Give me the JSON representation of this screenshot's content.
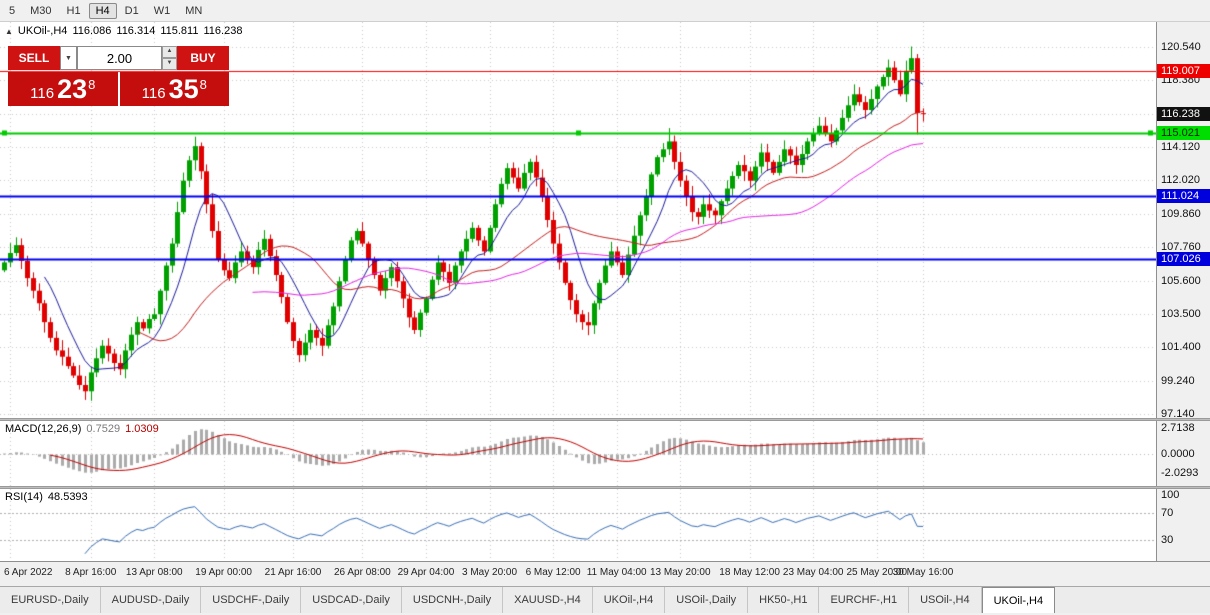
{
  "toolbar": {
    "timeframes": [
      "5",
      "M30",
      "H1",
      "H4",
      "D1",
      "W1",
      "MN"
    ],
    "active": "H4"
  },
  "header": {
    "collapse_icon": "▲",
    "symbol": "UKOil-,H4",
    "open": "116.086",
    "high": "116.314",
    "low": "115.811",
    "close": "116.238"
  },
  "trade_panel": {
    "sell_label": "SELL",
    "buy_label": "BUY",
    "volume": "2.00",
    "dropdown_icon": "▼",
    "spin_up": "▲",
    "spin_down": "▼",
    "bid": {
      "main": "116",
      "pips": "23",
      "sup": "8"
    },
    "ask": {
      "main": "116",
      "pips": "35",
      "sup": "8"
    }
  },
  "main_axis": {
    "labels": [
      "120.540",
      "118.380",
      "116.220",
      "114.120",
      "112.020",
      "109.860",
      "107.760",
      "105.600",
      "103.500",
      "101.400",
      "99.240",
      "97.140"
    ],
    "tags": [
      {
        "value": 119.007,
        "label": "119.007",
        "bg": "#ee0000",
        "fg": "#ffffff"
      },
      {
        "value": 116.238,
        "label": "116.238",
        "bg": "#111111",
        "fg": "#ffffff"
      },
      {
        "value": 115.021,
        "label": "115.021",
        "bg": "#00dd00",
        "fg": "#002200"
      },
      {
        "value": 111.024,
        "label": "111.024",
        "bg": "#0000dd",
        "fg": "#ffffff"
      },
      {
        "value": 107.026,
        "label": "107.026",
        "bg": "#0000dd",
        "fg": "#ffffff"
      }
    ]
  },
  "macd": {
    "name": "MACD(12,26,9)",
    "value_main": "0.7529",
    "value_signal": "1.0309",
    "y_labels": [
      "2.7138",
      "0.0000",
      "-2.0293"
    ],
    "range": [
      -3.4,
      3.4
    ],
    "colors": {
      "hist": "#ababab",
      "signal": "#c00000"
    }
  },
  "rsi": {
    "name": "RSI(14)",
    "value": "48.5393",
    "y_labels": [
      "100",
      "70",
      "30"
    ],
    "levels": [
      70,
      30
    ],
    "range": [
      0,
      105
    ],
    "color": "#3a6fb5"
  },
  "chart_data": {
    "type": "candlestick",
    "symbol": "UKOil-",
    "timeframe": "H4",
    "y_range": [
      96.9,
      122.1
    ],
    "first_open": 106.3,
    "bar_spacing": 5.78,
    "x_offset": 4,
    "colors": {
      "up": "#00a000",
      "down": "#e00000"
    },
    "closes": [
      106.8,
      107.4,
      107.9,
      106.9,
      105.8,
      105.0,
      104.2,
      103.0,
      102.0,
      101.2,
      100.8,
      100.2,
      99.6,
      99.0,
      98.6,
      99.8,
      100.7,
      101.5,
      101.0,
      100.4,
      100.0,
      101.2,
      102.2,
      103.0,
      102.6,
      103.2,
      103.5,
      105.0,
      106.6,
      108.0,
      110.0,
      112.0,
      113.3,
      114.2,
      112.6,
      110.5,
      108.8,
      107.0,
      106.3,
      105.8,
      106.8,
      107.5,
      107.0,
      106.5,
      107.6,
      108.3,
      107.2,
      106.0,
      104.6,
      103.0,
      101.8,
      100.9,
      101.7,
      102.5,
      102.0,
      101.5,
      102.8,
      104.0,
      105.6,
      107.0,
      108.2,
      108.8,
      108.0,
      107.0,
      106.0,
      105.0,
      105.8,
      106.5,
      105.6,
      104.5,
      103.3,
      102.5,
      103.6,
      104.5,
      105.7,
      106.8,
      106.2,
      105.5,
      106.6,
      107.5,
      108.3,
      109.0,
      108.2,
      107.5,
      109.0,
      110.5,
      111.8,
      112.8,
      112.2,
      111.5,
      112.5,
      113.2,
      112.2,
      111.0,
      109.5,
      108.0,
      106.8,
      105.5,
      104.4,
      103.5,
      103.0,
      102.8,
      104.2,
      105.5,
      106.6,
      107.5,
      106.8,
      106.0,
      107.3,
      108.5,
      109.8,
      111.0,
      112.4,
      113.5,
      114.0,
      114.5,
      113.2,
      112.0,
      111.0,
      110.0,
      109.7,
      110.5,
      110.1,
      109.8,
      110.7,
      111.5,
      112.3,
      113.0,
      112.6,
      112.0,
      112.9,
      113.8,
      113.2,
      112.5,
      113.2,
      114.0,
      113.6,
      113.0,
      113.7,
      114.5,
      115.0,
      115.5,
      115.0,
      114.5,
      115.2,
      116.0,
      116.8,
      117.5,
      117.0,
      116.5,
      117.2,
      118.0,
      118.6,
      119.2,
      118.4,
      117.5,
      119.0,
      119.8,
      116.3,
      116.238
    ],
    "wick_overrides": [
      {
        "bar": 2,
        "high": 108.4
      },
      {
        "bar": 14,
        "low": 98.05
      },
      {
        "bar": 33,
        "high": 114.8
      },
      {
        "bar": 51,
        "low": 100.45
      },
      {
        "bar": 115,
        "high": 115.35
      },
      {
        "bar": 157,
        "high": 120.54
      },
      {
        "bar": 158,
        "low": 114.95
      }
    ],
    "mas": [
      {
        "period": 8,
        "color": "#1c1c9c"
      },
      {
        "period": 24,
        "color": "#c22020"
      },
      {
        "period": 44,
        "color": "#e428e4"
      }
    ],
    "hlines": [
      {
        "value": 119.007,
        "color": "#ff0000",
        "width": 1
      },
      {
        "value": 115.021,
        "color": "#00cc00",
        "width": 2,
        "handles": true
      },
      {
        "value": 111.024,
        "color": "#0000ee",
        "width": 2
      },
      {
        "value": 107.026,
        "color": "#0000ee",
        "width": 2
      }
    ],
    "time_ticks": [
      {
        "bar": 1,
        "label": "6 Apr 2022"
      },
      {
        "bar": 15,
        "label": "8 Apr 16:00"
      },
      {
        "bar": 26,
        "label": "13 Apr 08:00"
      },
      {
        "bar": 38,
        "label": "19 Apr 00:00"
      },
      {
        "bar": 50,
        "label": "21 Apr 16:00"
      },
      {
        "bar": 62,
        "label": "26 Apr 08:00"
      },
      {
        "bar": 73,
        "label": "29 Apr 04:00"
      },
      {
        "bar": 84,
        "label": "3 May 20:00"
      },
      {
        "bar": 95,
        "label": "6 May 12:00"
      },
      {
        "bar": 106,
        "label": "11 May 04:00"
      },
      {
        "bar": 117,
        "label": "13 May 20:00"
      },
      {
        "bar": 129,
        "label": "18 May 12:00"
      },
      {
        "bar": 140,
        "label": "23 May 04:00"
      },
      {
        "bar": 151,
        "label": "25 May 20:00"
      },
      {
        "bar": 159,
        "label": "30 May 16:00"
      }
    ]
  },
  "tabs": [
    {
      "label": "EURUSD-,Daily"
    },
    {
      "label": "AUDUSD-,Daily"
    },
    {
      "label": "USDCHF-,Daily"
    },
    {
      "label": "USDCAD-,Daily"
    },
    {
      "label": "USDCNH-,Daily"
    },
    {
      "label": "XAUUSD-,H4"
    },
    {
      "label": "UKOil-,H4"
    },
    {
      "label": "USOil-,Daily"
    },
    {
      "label": "HK50-,H1"
    },
    {
      "label": "EURCHF-,H1"
    },
    {
      "label": "USOil-,H4"
    },
    {
      "label": "UKOil-,H4",
      "active": true
    }
  ]
}
